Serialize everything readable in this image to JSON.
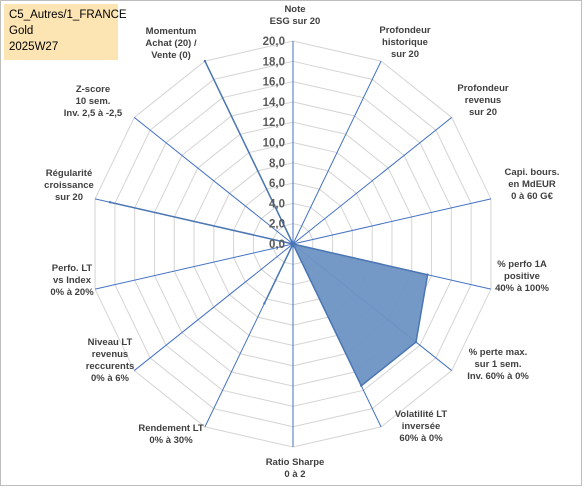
{
  "info_box": {
    "line1": "C5_Autres/1_FRANCE",
    "line2": "Gold",
    "line3": "2025W27"
  },
  "chart_data": {
    "type": "radar",
    "title": "",
    "rmin": 0,
    "rmax": 20,
    "tick_step": 2,
    "tick_labels": [
      "0,0",
      "2,0",
      "4,0",
      "6,0",
      "8,0",
      "10,0",
      "12,0",
      "14,0",
      "16,0",
      "18,0",
      "20,0"
    ],
    "grid": true,
    "axes": [
      {
        "label": [
          "Note",
          "ESG sur 20"
        ]
      },
      {
        "label": [
          "Profondeur",
          "historique",
          "sur 20"
        ]
      },
      {
        "label": [
          "Profondeur",
          "revenus",
          "sur 20"
        ]
      },
      {
        "label": [
          "Capi. bours.",
          "en MdEUR",
          "0 à 60 G€"
        ]
      },
      {
        "label": [
          "% perfo 1A",
          "positive",
          "40% à 100%"
        ]
      },
      {
        "label": [
          "% perte max.",
          "sur 1 sem.",
          "Inv. 60% à 0%"
        ]
      },
      {
        "label": [
          "Volatilité LT",
          "inversée",
          "60% à 0%"
        ]
      },
      {
        "label": [
          "Ratio Sharpe",
          "0 à 2"
        ]
      },
      {
        "label": [
          "Rendement LT",
          "0% à 30%"
        ]
      },
      {
        "label": [
          "Niveau LT",
          "revenus",
          "reccurents",
          "0% à 6%"
        ]
      },
      {
        "label": [
          "Perfo. LT",
          "vs Index",
          "0% à 20%"
        ]
      },
      {
        "label": [
          "Régularité",
          "croissance",
          "sur 20"
        ]
      },
      {
        "label": [
          "Z-score",
          "10 sem.",
          "Inv. 2,5 à -2,5"
        ]
      },
      {
        "label": [
          "Momentum",
          "Achat (20) /",
          "Vente (0)"
        ]
      }
    ],
    "series": [
      {
        "values": [
          0,
          0,
          0,
          0,
          13.6,
          15.5,
          15.5,
          0,
          6.5,
          0,
          0,
          18.5,
          0,
          20
        ],
        "color": "#4a7ab5"
      }
    ],
    "colors": {
      "fill": "#6e93c4",
      "stroke": "#4a76b3",
      "grid": "#d4d4d4",
      "spoke": "#4472c4"
    }
  }
}
